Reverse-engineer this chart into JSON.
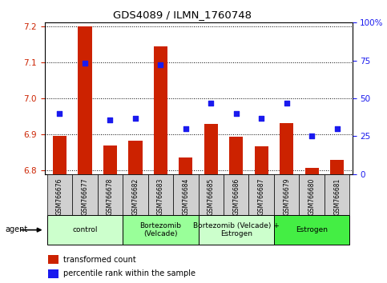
{
  "title": "GDS4089 / ILMN_1760748",
  "samples": [
    "GSM766676",
    "GSM766677",
    "GSM766678",
    "GSM766682",
    "GSM766683",
    "GSM766684",
    "GSM766685",
    "GSM766686",
    "GSM766687",
    "GSM766679",
    "GSM766680",
    "GSM766681"
  ],
  "transformed_count": [
    6.895,
    7.2,
    6.87,
    6.882,
    7.145,
    6.835,
    6.93,
    6.893,
    6.868,
    6.932,
    6.806,
    6.83
  ],
  "percentile_rank": [
    40,
    73,
    36,
    37,
    72,
    30,
    47,
    40,
    37,
    47,
    25,
    30
  ],
  "ylim_left": [
    6.79,
    7.21
  ],
  "ylim_right": [
    0,
    100
  ],
  "yticks_left": [
    6.8,
    6.9,
    7.0,
    7.1,
    7.2
  ],
  "yticks_right": [
    0,
    25,
    50,
    75,
    100
  ],
  "bar_color": "#cc2200",
  "dot_color": "#1a1aee",
  "bar_bottom": 6.79,
  "groups": [
    {
      "label": "control",
      "start": 0,
      "end": 2,
      "color": "#ccffcc"
    },
    {
      "label": "Bortezomib\n(Velcade)",
      "start": 3,
      "end": 5,
      "color": "#99ff99"
    },
    {
      "label": "Bortezomib (Velcade) +\nEstrogen",
      "start": 6,
      "end": 8,
      "color": "#ccffcc"
    },
    {
      "label": "Estrogen",
      "start": 9,
      "end": 11,
      "color": "#44ee44"
    }
  ],
  "legend_items": [
    {
      "label": "transformed count",
      "color": "#cc2200"
    },
    {
      "label": "percentile rank within the sample",
      "color": "#1a1aee"
    }
  ],
  "figsize": [
    4.83,
    3.54
  ],
  "dpi": 100
}
